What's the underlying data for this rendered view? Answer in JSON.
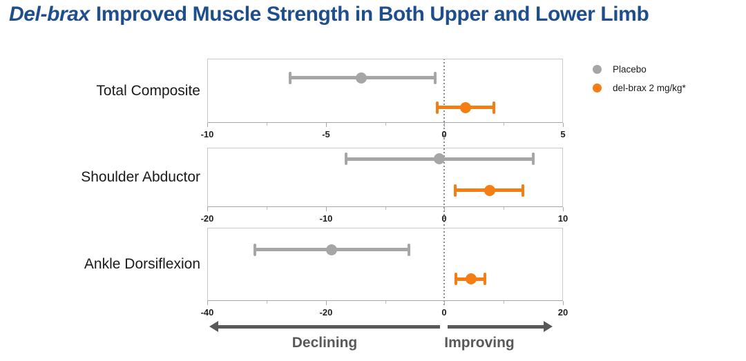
{
  "title": {
    "brand": "Del-brax",
    "rest": "Improved Muscle Strength in Both Upper and Lower Limb"
  },
  "legend": [
    {
      "name": "placebo",
      "label": "Placebo",
      "color": "#a6a6a6"
    },
    {
      "name": "delbrax",
      "label": "del-brax 2 mg/kg*",
      "color": "#f57e14"
    }
  ],
  "footer": {
    "declining_label": "Declining",
    "improving_label": "Improving"
  },
  "colors": {
    "title_blue": "#1f4e8c",
    "placebo_gray": "#a6a6a6",
    "delbrax_orange": "#f57e14",
    "arrow_gray": "#595959",
    "axis_text": "#1f1f1f",
    "panel_border": "#c9c9c9",
    "zero_line": "#8a8a8a"
  },
  "chart_data": {
    "type": "scatter",
    "subtype": "horizontal-errorbar-forest-plot",
    "grid": false,
    "legend_position": "top-right",
    "zero_reference_line": 0,
    "direction_annotations": {
      "negative": "Declining",
      "positive": "Improving"
    },
    "panels": [
      {
        "category": "Total Composite",
        "xlim": [
          -10,
          5
        ],
        "major_ticks": [
          -10,
          -5,
          0,
          5
        ],
        "minor_ticks": [
          -7.5,
          -2.5,
          2.5
        ],
        "series": [
          {
            "name": "Placebo",
            "center": -3.5,
            "low": -6.5,
            "high": -0.4
          },
          {
            "name": "del-brax 2 mg/kg*",
            "center": 0.9,
            "low": -0.3,
            "high": 2.1
          }
        ]
      },
      {
        "category": "Shoulder Abductor",
        "xlim": [
          -20,
          10
        ],
        "major_ticks": [
          -20,
          -10,
          0,
          10
        ],
        "minor_ticks": [
          -15,
          -5,
          5
        ],
        "series": [
          {
            "name": "Placebo",
            "center": -0.4,
            "low": -8.3,
            "high": 7.5
          },
          {
            "name": "del-brax 2 mg/kg*",
            "center": 3.8,
            "low": 0.9,
            "high": 6.6
          }
        ]
      },
      {
        "category": "Ankle Dorsiflexion",
        "xlim": [
          -40,
          20
        ],
        "major_ticks": [
          -40,
          -20,
          0,
          20
        ],
        "minor_ticks": [
          -30,
          -10,
          10
        ],
        "series": [
          {
            "name": "Placebo",
            "center": -19.0,
            "low": -32.0,
            "high": -6.0
          },
          {
            "name": "del-brax 2 mg/kg*",
            "center": 4.5,
            "low": 1.9,
            "high": 6.8
          }
        ]
      }
    ]
  }
}
